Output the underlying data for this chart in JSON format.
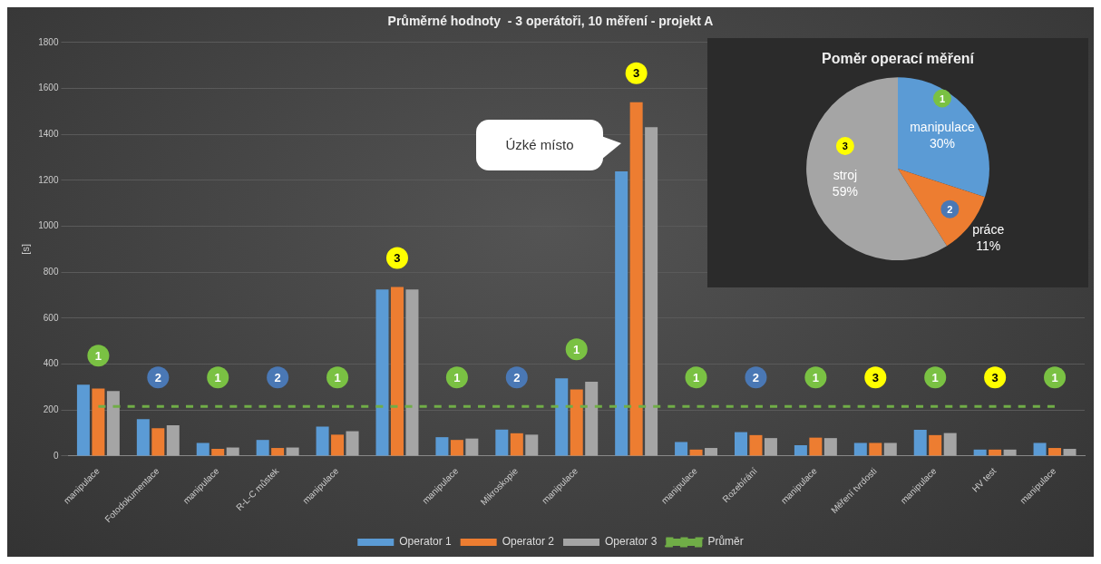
{
  "chart_data": [
    {
      "type": "bar",
      "title": "Průměrné hodnoty  - 3 operátoři, 10 měření - projekt A",
      "ylabel": "[s]",
      "categories": [
        "manipulace",
        "Fotodokumentace",
        "manipulace",
        "R-L-C můstek",
        "manipulace",
        null,
        "manipulace",
        "Mikroskopie",
        "manipulace",
        null,
        "manipulace",
        "Rozebírání",
        "manipulace",
        "Měření tvrdosti",
        "manipulace",
        "HV test",
        "manipulace"
      ],
      "series": [
        {
          "name": "Operator 1",
          "color": "#5b9bd5",
          "values": [
            310,
            160,
            57,
            70,
            128,
            725,
            82,
            115,
            338,
            1239,
            61,
            104,
            47,
            57,
            114,
            28,
            57
          ]
        },
        {
          "name": "Operator 2",
          "color": "#ed7d31",
          "values": [
            294,
            121,
            31,
            35,
            93,
            736,
            70,
            99,
            290,
            1540,
            28,
            91,
            80,
            57,
            91,
            28,
            35
          ]
        },
        {
          "name": "Operator 3",
          "color": "#a5a5a5",
          "values": [
            283,
            134,
            37,
            37,
            108,
            725,
            76,
            93,
            323,
            1431,
            35,
            78,
            78,
            57,
            100,
            28,
            31
          ]
        },
        {
          "name": "Průměr",
          "type": "line",
          "color": "#70ad47",
          "line_style": "dashed",
          "marker": "none",
          "values": [
            216,
            216,
            216,
            216,
            216,
            216,
            216,
            216,
            216,
            216,
            216,
            216,
            216,
            216,
            216,
            216,
            216
          ]
        }
      ],
      "ylim": [
        0,
        1800
      ],
      "yticks": [
        0,
        200,
        400,
        600,
        800,
        1000,
        1200,
        1400,
        1600,
        1800
      ],
      "grid": "y",
      "legend": "bottom",
      "annotations": [
        "1",
        "2",
        "1",
        "2",
        "1",
        "3",
        "1",
        "2",
        "1",
        "3",
        "1",
        "2",
        "1",
        "3",
        "1",
        "3",
        "1",
        "Úzké místo"
      ]
    },
    {
      "type": "pie",
      "title": "Poměr operací měření",
      "categories": [
        "manipulace",
        "práce",
        "stroj"
      ],
      "values": [
        30,
        11,
        59
      ],
      "colors": [
        "#5b9bd5",
        "#ed7d31",
        "#a5a5a5"
      ],
      "value_labels": [
        "30%",
        "11%",
        "59%"
      ],
      "annotations": [
        "1",
        "2",
        "3"
      ]
    }
  ]
}
